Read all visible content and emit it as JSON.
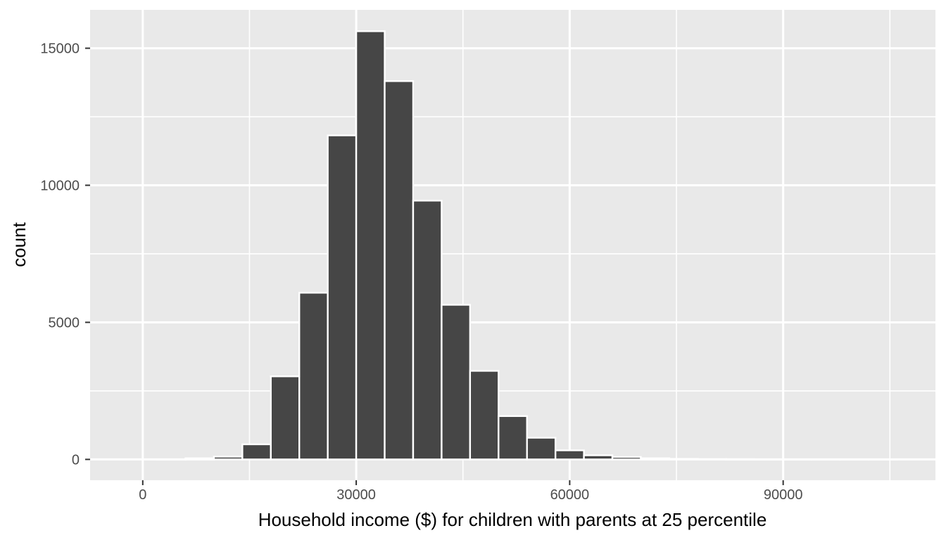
{
  "chart_data": {
    "type": "bar",
    "subtype": "histogram",
    "xlabel": "Household income ($) for children with parents at 25 percentile",
    "ylabel": "count",
    "bin_width": 4000,
    "bin_centers": [
      0,
      4000,
      8000,
      12000,
      16000,
      20000,
      24000,
      28000,
      32000,
      36000,
      40000,
      44000,
      48000,
      52000,
      56000,
      60000,
      64000,
      68000,
      72000,
      76000,
      80000,
      84000,
      88000,
      92000,
      96000,
      100000,
      104000
    ],
    "counts": [
      0,
      3,
      40,
      100,
      550,
      3030,
      6080,
      11820,
      15620,
      13800,
      9440,
      5640,
      3230,
      1580,
      790,
      330,
      150,
      90,
      40,
      20,
      12,
      8,
      5,
      4,
      3,
      2,
      2
    ],
    "x_ticks": [
      0,
      30000,
      60000,
      90000
    ],
    "x_tick_labels": [
      "0",
      "30000",
      "60000",
      "90000"
    ],
    "y_ticks": [
      0,
      5000,
      10000,
      15000
    ],
    "y_tick_labels": [
      "0",
      "5000",
      "10000",
      "15000"
    ],
    "x_minor_ticks": [
      15000,
      45000,
      75000,
      105000
    ],
    "y_minor_ticks": [
      2500,
      7500,
      12500
    ],
    "xlim": [
      -7400,
      111400
    ],
    "ylim": [
      -760,
      16400
    ],
    "grid": true,
    "legend": false,
    "colors": {
      "bar_fill": "#464646",
      "bar_stroke": "#ffffff",
      "panel_background": "#e9e9e9",
      "gridline": "#ffffff",
      "tick_mark": "#333333",
      "tick_label": "#4d4d4d",
      "axis_title": "#000000",
      "page_background": "#ffffff"
    }
  }
}
